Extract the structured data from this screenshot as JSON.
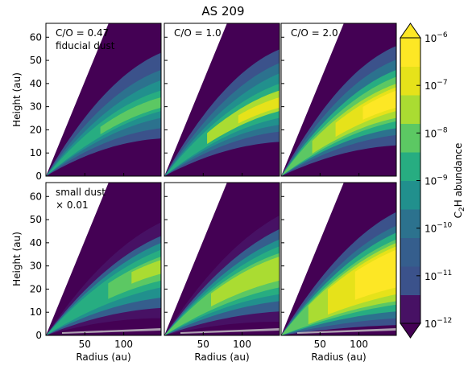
{
  "title": "AS 209",
  "colors": {
    "background": "#440154",
    "levels": [
      "#471164",
      "#3b528b",
      "#355e8d",
      "#2c728e",
      "#21908d",
      "#27ad81",
      "#5cc863",
      "#aadc32",
      "#e6e21a",
      "#fde725"
    ]
  },
  "chart_data": [
    {
      "type": "heatmap",
      "panel": "fiducial, C/O = 0.47",
      "label": "C/O = 0.47",
      "sublabel": "fiducial dust",
      "ylabel": "Height (au)",
      "xlabel": "",
      "xlim": [
        0,
        148
      ],
      "ylim": [
        0,
        66
      ]
    },
    {
      "type": "heatmap",
      "panel": "fiducial, C/O = 1.0",
      "label": "C/O = 1.0",
      "sublabel": "",
      "ylabel": "",
      "xlabel": "",
      "xlim": [
        0,
        148
      ],
      "ylim": [
        0,
        66
      ]
    },
    {
      "type": "heatmap",
      "panel": "fiducial, C/O = 2.0",
      "label": "C/O = 2.0",
      "sublabel": "",
      "ylabel": "",
      "xlabel": "",
      "xlim": [
        0,
        148
      ],
      "ylim": [
        0,
        66
      ]
    },
    {
      "type": "heatmap",
      "panel": "small dust x0.01, C/O = 0.47",
      "label": "small dust",
      "sublabel": "× 0.01",
      "ylabel": "Height (au)",
      "xlabel": "Radius (au)",
      "xlim": [
        0,
        148
      ],
      "ylim": [
        0,
        66
      ]
    },
    {
      "type": "heatmap",
      "panel": "small dust x0.01, C/O = 1.0",
      "label": "",
      "sublabel": "",
      "ylabel": "",
      "xlabel": "Radius (au)",
      "xlim": [
        0,
        148
      ],
      "ylim": [
        0,
        66
      ]
    },
    {
      "type": "heatmap",
      "panel": "small dust x0.01, C/O = 2.0",
      "label": "",
      "sublabel": "",
      "ylabel": "",
      "xlabel": "Radius (au)",
      "xlim": [
        0,
        148
      ],
      "ylim": [
        0,
        66
      ]
    }
  ],
  "axes": {
    "x_ticks": [
      50,
      100
    ],
    "y_ticks": [
      0,
      10,
      20,
      30,
      40,
      50,
      60
    ]
  },
  "colorbar": {
    "label_main": "C",
    "label_sub": "2",
    "label_rest": "H abundance",
    "scale": "log",
    "range": [
      1e-12,
      1e-06
    ],
    "ticks": [
      {
        "base": "10",
        "exp": "−6",
        "value": 1e-06
      },
      {
        "base": "10",
        "exp": "−7",
        "value": 1e-07
      },
      {
        "base": "10",
        "exp": "−8",
        "value": 1e-08
      },
      {
        "base": "10",
        "exp": "−9",
        "value": 1e-09
      },
      {
        "base": "10",
        "exp": "−10",
        "value": 1e-10
      },
      {
        "base": "10",
        "exp": "−11",
        "value": 1e-11
      },
      {
        "base": "10",
        "exp": "−12",
        "value": 1e-12
      }
    ]
  }
}
